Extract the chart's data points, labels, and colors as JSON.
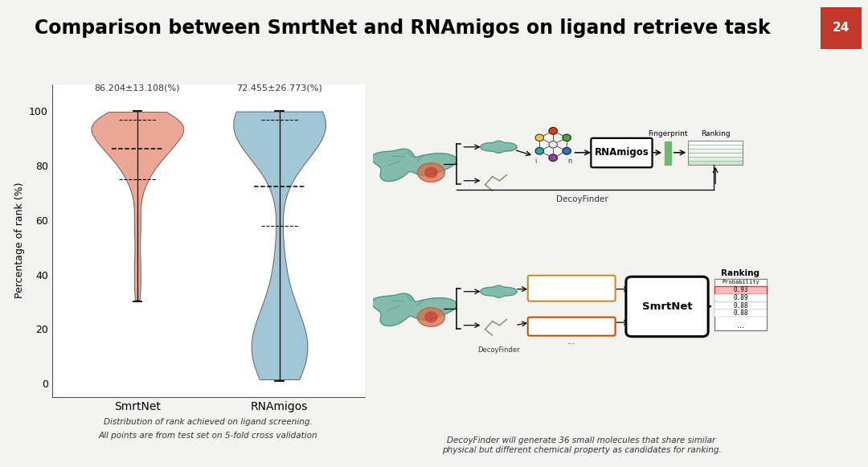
{
  "title": "Comparison between SmrtNet and RNAmigos on ligand retrieve task",
  "title_fontsize": 17,
  "title_fontweight": "bold",
  "bg_color": "#f2f2ee",
  "slide_number": "24",
  "slide_number_bg": "#c0392b",
  "violin_labels": [
    "SmrtNet",
    "RNAmigos"
  ],
  "violin_colors": [
    "#e8907a",
    "#8ab8cc"
  ],
  "violin_edge_color": "#444444",
  "ylabel": "Percentage of rank (%)",
  "yticks": [
    0,
    20,
    40,
    60,
    80,
    100
  ],
  "stats_labels": [
    "86.204±13.108(%)",
    "72.455±26.773(%)"
  ],
  "smrtnet_mean": 86.204,
  "smrtnet_min": 30.0,
  "smrtnet_max": 100.0,
  "smrtnet_q1": 75.0,
  "smrtnet_q3": 97.0,
  "rnamigos_mean": 72.455,
  "rnamigos_min": 1.0,
  "rnamigos_max": 100.0,
  "rnamigos_q1": 58.0,
  "rnamigos_q3": 97.0,
  "caption_line1": "Distribution of rank achieved on ligand screening.",
  "caption_line2": "All points are from test set on 5-fold cross validation",
  "right_caption": "DecoyFinder will generate 36 small molecules that share similar\nphysical but different chemical property as candidates for ranking.",
  "separator_color": "#5b9bd5",
  "accent_line_color": "#2196F3"
}
